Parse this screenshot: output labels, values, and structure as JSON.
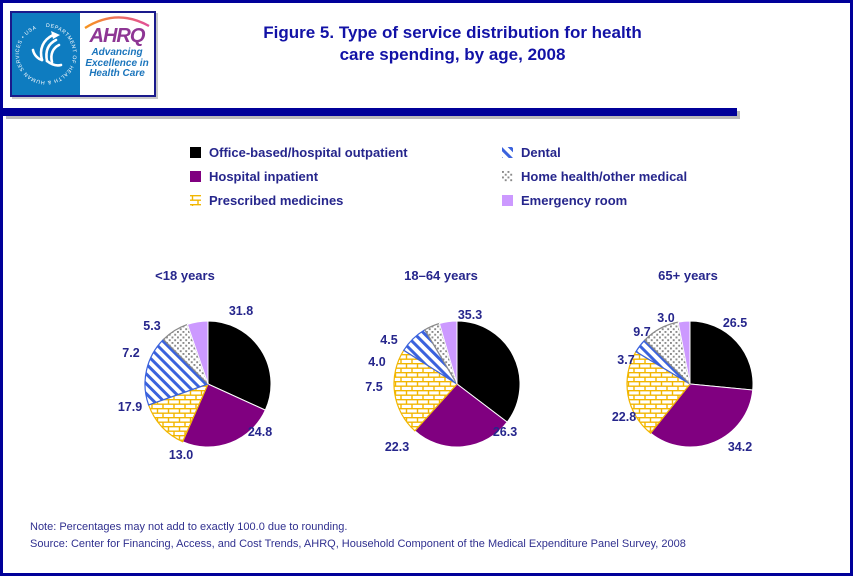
{
  "header": {
    "logo": {
      "seal_text": "DEPARTMENT OF HEALTH & HUMAN SERVICES • USA",
      "ahrq": "AHRQ",
      "tagline": [
        "Advancing",
        "Excellence in",
        "Health Care"
      ]
    },
    "title_line1": "Figure 5. Type of service distribution for health",
    "title_line2": "care spending, by age, 2008"
  },
  "legend": {
    "items": [
      {
        "key": "office",
        "label": "Office-based/hospital outpatient"
      },
      {
        "key": "inpatient",
        "label": "Hospital inpatient"
      },
      {
        "key": "prescribed",
        "label": "Prescribed medicines"
      },
      {
        "key": "dental",
        "label": "Dental"
      },
      {
        "key": "home",
        "label": "Home health/other medical"
      },
      {
        "key": "er",
        "label": "Emergency room"
      }
    ]
  },
  "chart_data": {
    "type": "pie",
    "title": "Figure 5. Type of service distribution for health care spending, by age, 2008",
    "unit": "percent",
    "legend_position": "top",
    "categories": [
      "Office-based/hospital outpatient",
      "Hospital inpatient",
      "Prescribed medicines",
      "Dental",
      "Home health/other medical",
      "Emergency room"
    ],
    "slice_styles": [
      {
        "key": "office",
        "fill": "#000000"
      },
      {
        "key": "inpatient",
        "fill": "#800080"
      },
      {
        "key": "prescribed",
        "pattern": "brick",
        "color": "#F2B600"
      },
      {
        "key": "dental",
        "pattern": "stripe",
        "color": "#3A62DD"
      },
      {
        "key": "home",
        "pattern": "dots",
        "color": "#8A8A8A"
      },
      {
        "key": "er",
        "fill": "#CC99FF"
      }
    ],
    "charts": [
      {
        "group": "<18 years",
        "values": [
          31.8,
          24.8,
          13.0,
          17.9,
          7.2,
          5.3
        ],
        "labels_text": [
          "31.8",
          "24.8",
          "13.0",
          "17.9",
          "7.2",
          "5.3"
        ]
      },
      {
        "group": "18–64 years",
        "values": [
          35.3,
          26.3,
          22.3,
          7.5,
          4.0,
          4.5
        ],
        "labels_text": [
          "35.3",
          "26.3",
          "22.3",
          "7.5",
          "4.0",
          "4.5"
        ]
      },
      {
        "group": "65+ years",
        "values": [
          26.5,
          34.2,
          22.8,
          3.7,
          9.7,
          3.0
        ],
        "labels_text": [
          "26.5",
          "34.2",
          "22.8",
          "3.7",
          "9.7",
          "3.0"
        ]
      }
    ]
  },
  "footer": {
    "note": "Note: Percentages may not add to exactly 100.0 due to rounding.",
    "source": "Source: Center for Financing, Access, and Cost Trends, AHRQ, Household Component of the Medical Expenditure Panel Survey, 2008"
  },
  "colors": {
    "page_border": "#000099",
    "header_bar": "#000099",
    "title_text": "#1212A6",
    "body_text_navy": "#26268C",
    "seal_blue": "#0E7CC0",
    "ahrq_purple": "#8E3694",
    "tagline_blue": "#1B75BC",
    "office_black": "#000000",
    "inpatient_purple": "#800080",
    "prescribed_gold": "#F2B600",
    "dental_blue": "#3A62DD",
    "home_gray": "#8A8A8A",
    "er_lavender": "#CC99FF"
  }
}
